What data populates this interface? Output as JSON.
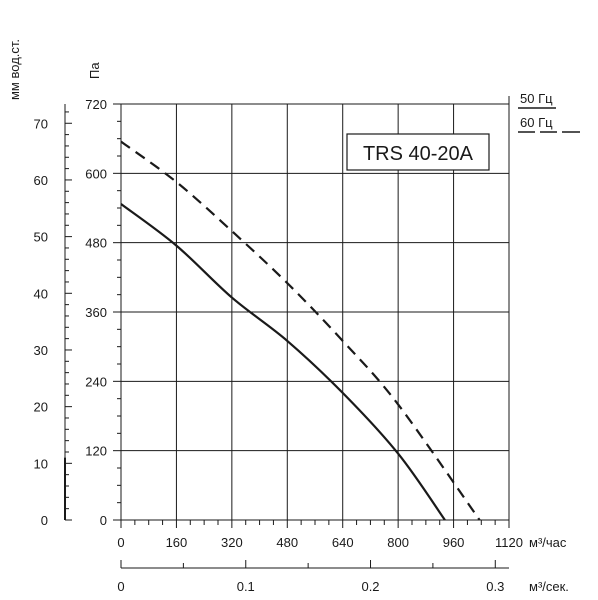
{
  "chart_data": {
    "type": "line",
    "model": "TRS 40-20A",
    "ylabel_left": "мм вод.ст.",
    "ylabel_pa": "Па",
    "xlabel_top": "м³/час",
    "xlabel_bottom": "м³/сек.",
    "x_ticks": [
      "0",
      "160",
      "320",
      "480",
      "640",
      "800",
      "960",
      "1120"
    ],
    "pa_ticks": [
      "0",
      "120",
      "240",
      "360",
      "480",
      "600",
      "720"
    ],
    "mm_ticks": [
      "0",
      "10",
      "20",
      "30",
      "40",
      "50",
      "60",
      "70"
    ],
    "sec_ticks": [
      "0",
      "0.1",
      "0.2",
      "0.3"
    ],
    "xlim": [
      0,
      1120
    ],
    "ylim_pa": [
      0,
      720
    ],
    "ylim_mm": [
      0,
      73.4
    ],
    "seclim": [
      0,
      0.311
    ],
    "grid": true,
    "series": [
      {
        "name": "50 Гц",
        "style": "solid",
        "x": [
          0,
          160,
          320,
          480,
          640,
          800,
          935
        ],
        "y": [
          547,
          475,
          385,
          310,
          220,
          115,
          0
        ]
      },
      {
        "name": "60 Гц",
        "style": "dashed",
        "x": [
          0,
          160,
          320,
          480,
          640,
          800,
          1035
        ],
        "y": [
          655,
          585,
          500,
          410,
          310,
          200,
          0
        ]
      }
    ]
  }
}
